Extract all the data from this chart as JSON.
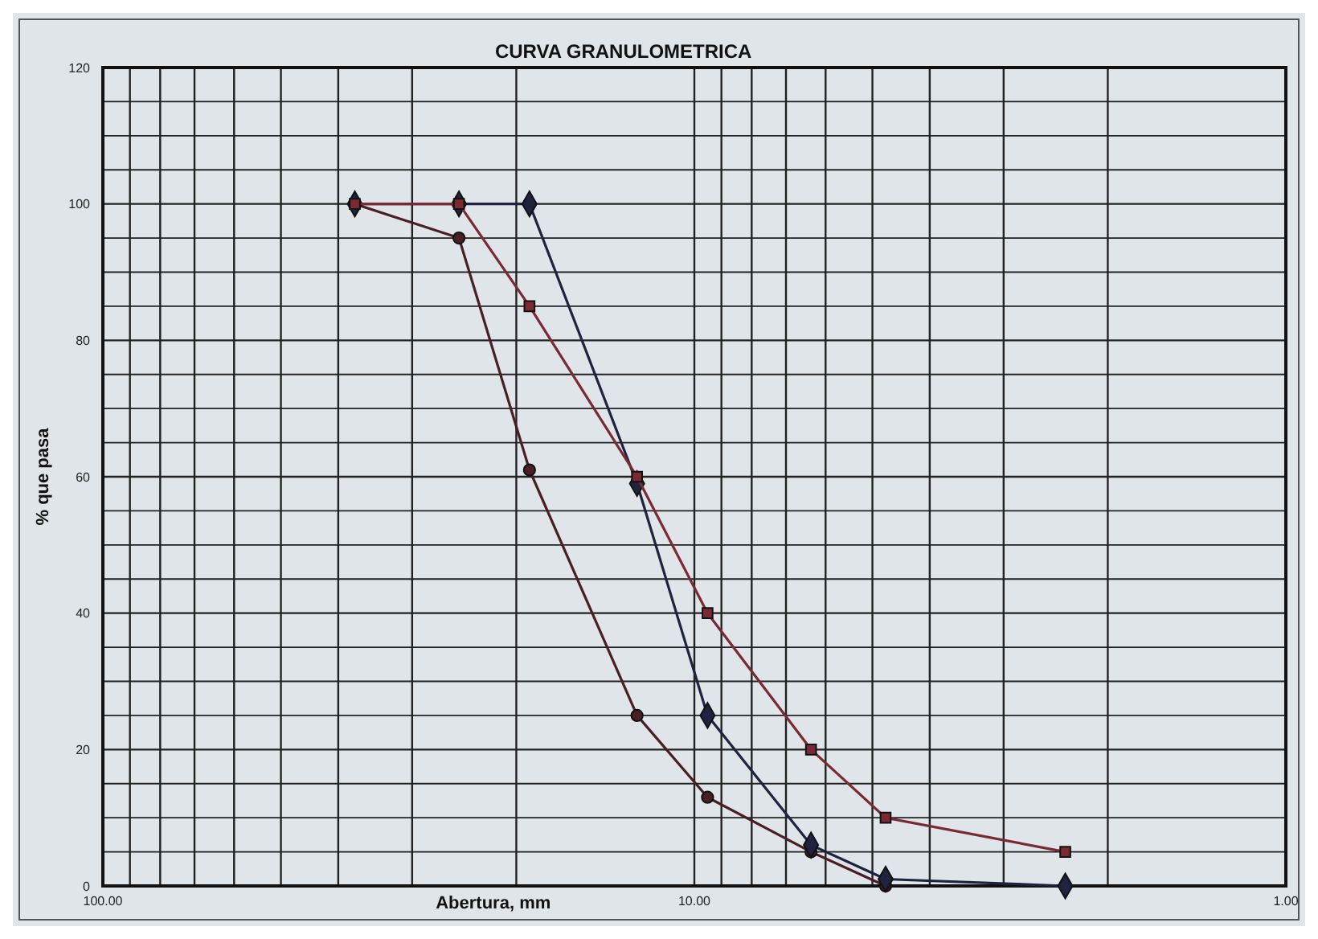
{
  "chart_data": {
    "type": "line",
    "title": "CURVA GRANULOMETRICA",
    "xlabel": "Abertura, mm",
    "ylabel": "% que pasa",
    "log": "x",
    "grid": true,
    "xlim": [
      100,
      1
    ],
    "ylim": [
      0,
      120
    ],
    "xticks": [
      {
        "value": 100,
        "label": "100.00"
      },
      {
        "value": 90,
        "label": null
      },
      {
        "value": 80,
        "label": null
      },
      {
        "value": 70,
        "label": null
      },
      {
        "value": 60,
        "label": null
      },
      {
        "value": 50,
        "label": null
      },
      {
        "value": 40,
        "label": null
      },
      {
        "value": 30,
        "label": null
      },
      {
        "value": 20,
        "label": null
      },
      {
        "value": 10,
        "label": "10.00"
      },
      {
        "value": 9,
        "label": null
      },
      {
        "value": 8,
        "label": null
      },
      {
        "value": 7,
        "label": null
      },
      {
        "value": 6,
        "label": null
      },
      {
        "value": 5,
        "label": null
      },
      {
        "value": 4,
        "label": null
      },
      {
        "value": 3,
        "label": null
      },
      {
        "value": 2,
        "label": null
      },
      {
        "value": 1,
        "label": "1.00"
      }
    ],
    "yticks": [
      0,
      {
        "value": 5,
        "label": null
      },
      {
        "value": 10,
        "label": null
      },
      {
        "value": 15,
        "label": null
      },
      20,
      {
        "value": 25,
        "label": null
      },
      {
        "value": 30,
        "label": null
      },
      {
        "value": 35,
        "label": null
      },
      40,
      {
        "value": 45,
        "label": null
      },
      {
        "value": 50,
        "label": null
      },
      {
        "value": 55,
        "label": null
      },
      60,
      {
        "value": 65,
        "label": null
      },
      {
        "value": 70,
        "label": null
      },
      {
        "value": 75,
        "label": null
      },
      80,
      {
        "value": 85,
        "label": null
      },
      {
        "value": 90,
        "label": null
      },
      {
        "value": 95,
        "label": null
      },
      100,
      {
        "value": 105,
        "label": null
      },
      {
        "value": 110,
        "label": null
      },
      {
        "value": 115,
        "label": null
      },
      120
    ],
    "series": [
      {
        "color": "#4a1e26",
        "marker": "circle",
        "x": [
          37.5,
          25,
          19,
          12.5,
          9.5,
          6.35,
          4.75
        ],
        "values": [
          100,
          95,
          61,
          25,
          13,
          5,
          0
        ]
      },
      {
        "color": "#1f2340",
        "marker": "diamond",
        "x": [
          37.5,
          25,
          19,
          12.5,
          9.5,
          6.35,
          4.75,
          2.36
        ],
        "values": [
          100,
          100,
          100,
          59,
          25,
          6,
          1,
          0
        ]
      },
      {
        "color": "#7a2a35",
        "marker": "square",
        "x": [
          37.5,
          25,
          19,
          12.5,
          9.5,
          6.35,
          4.75,
          2.36
        ],
        "values": [
          100,
          100,
          85,
          60,
          40,
          20,
          10,
          5
        ]
      }
    ]
  }
}
